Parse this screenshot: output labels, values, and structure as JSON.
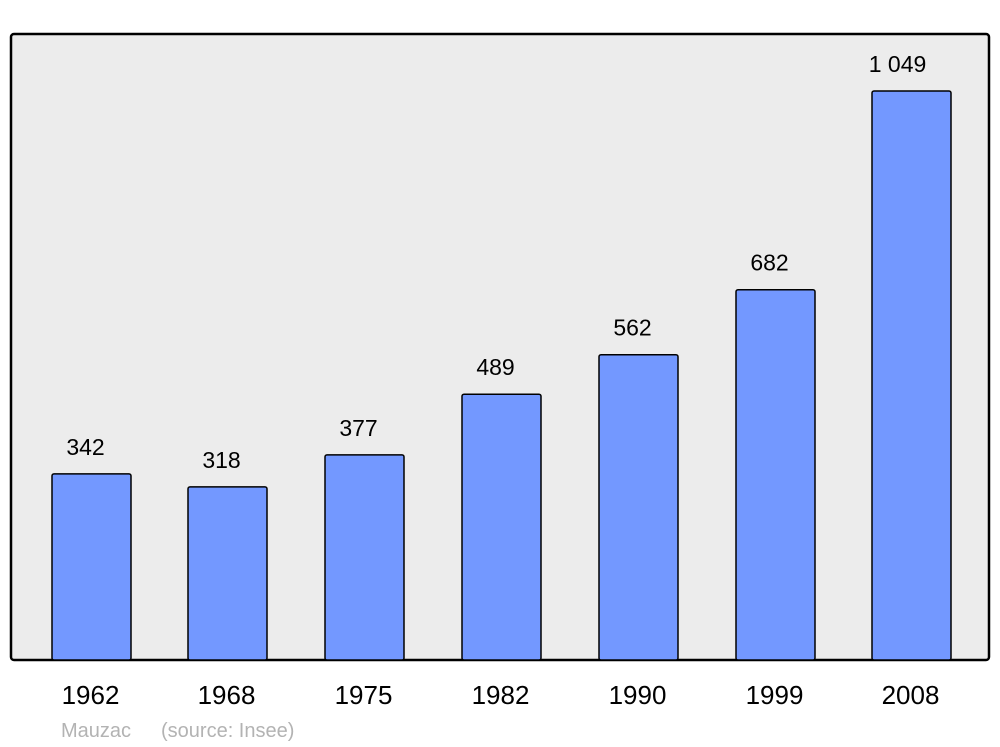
{
  "chart_data": {
    "type": "bar",
    "categories": [
      "1962",
      "1968",
      "1975",
      "1982",
      "1990",
      "1999",
      "2008"
    ],
    "values": [
      342,
      318,
      377,
      489,
      562,
      682,
      1049
    ],
    "value_labels": [
      "342",
      "318",
      "377",
      "489",
      "562",
      "682",
      "1 049"
    ],
    "title": "",
    "xlabel": "",
    "ylabel": "",
    "ylim": [
      0,
      1049
    ],
    "grid": false,
    "footer": {
      "place": "Mauzac",
      "source": "(source: Insee)"
    },
    "colors": {
      "bar": "#7398ff",
      "plot_background": "#ececec",
      "border": "#000000",
      "footer_text": "#b3b3b3"
    }
  }
}
